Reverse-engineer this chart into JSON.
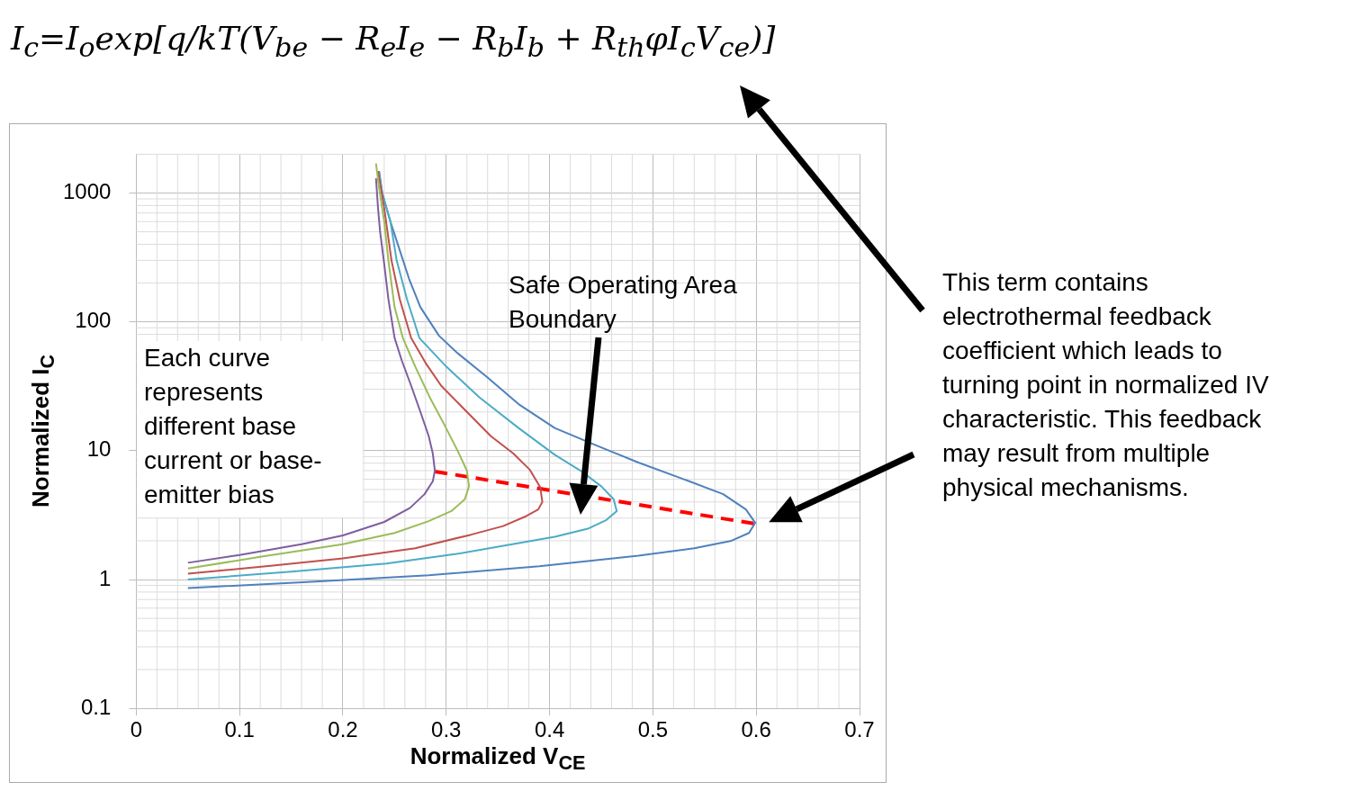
{
  "chart_data": {
    "type": "line",
    "title": "I$_{c}$=I$_{o}$exp[q/kT(V$_{be}$ − R$_{e}$I$_{e}$ − R$_{b}$I$_{b}$ + R$_{th}$φI$_{c}$V$_{ce}$)]",
    "xlabel": "Normalized V$_{CE}$",
    "ylabel": "Normalized I$_{C}$",
    "log": "y",
    "grid": true,
    "legend": false,
    "marker": "none",
    "xlim": [
      0,
      0.7
    ],
    "xticks": [
      0,
      0.1,
      0.2,
      0.3,
      0.4,
      0.5,
      0.6,
      0.7
    ],
    "ylim": [
      0.1,
      2000
    ],
    "yticks": [
      0.1,
      1,
      10,
      100,
      1000
    ],
    "series": [
      {
        "color": "#7e5ea0",
        "line_style": "solid",
        "x": [
          0.05,
          0.1,
          0.16,
          0.2,
          0.24,
          0.265,
          0.279,
          0.287,
          0.289,
          0.287,
          0.283,
          0.275,
          0.266,
          0.257,
          0.25,
          0.244,
          0.24,
          0.236,
          0.234,
          0.232
        ],
        "values": [
          1.35,
          1.55,
          1.88,
          2.2,
          2.8,
          3.6,
          4.6,
          5.8,
          7,
          9.5,
          13,
          20,
          32,
          50,
          75,
          150,
          280,
          500,
          760,
          1300
        ]
      },
      {
        "color": "#9bbb59",
        "line_style": "solid",
        "x": [
          0.05,
          0.12,
          0.2,
          0.25,
          0.283,
          0.305,
          0.318,
          0.322,
          0.32,
          0.311,
          0.298,
          0.284,
          0.27,
          0.258,
          0.25,
          0.244,
          0.24,
          0.235,
          0.232
        ],
        "values": [
          1.22,
          1.5,
          1.88,
          2.3,
          2.84,
          3.4,
          4.2,
          5.3,
          7,
          10,
          16,
          26,
          45,
          75,
          130,
          300,
          600,
          1100,
          1700
        ]
      },
      {
        "color": "#c0504d",
        "line_style": "solid",
        "x": [
          0.05,
          0.13,
          0.2,
          0.27,
          0.324,
          0.355,
          0.376,
          0.389,
          0.393,
          0.391,
          0.381,
          0.365,
          0.343,
          0.32,
          0.295,
          0.28,
          0.266,
          0.255,
          0.247,
          0.24,
          0.234
        ],
        "values": [
          1.11,
          1.28,
          1.46,
          1.75,
          2.23,
          2.6,
          3.07,
          3.5,
          4,
          5.2,
          7.1,
          9.5,
          13,
          20,
          32,
          48,
          75,
          150,
          300,
          760,
          1480
        ]
      },
      {
        "color": "#4bacc6",
        "line_style": "solid",
        "x": [
          0.05,
          0.15,
          0.242,
          0.31,
          0.364,
          0.405,
          0.437,
          0.455,
          0.465,
          0.462,
          0.45,
          0.43,
          0.405,
          0.37,
          0.332,
          0.3,
          0.274,
          0.262,
          0.252,
          0.246,
          0.238,
          0.235
        ],
        "values": [
          1,
          1.15,
          1.33,
          1.58,
          1.88,
          2.15,
          2.48,
          2.9,
          3.4,
          4.2,
          5.3,
          7,
          9.3,
          15,
          26,
          45,
          75,
          150,
          300,
          600,
          1000,
          1430
        ]
      },
      {
        "color": "#4f81bd",
        "line_style": "solid",
        "x": [
          0.05,
          0.17,
          0.283,
          0.39,
          0.486,
          0.54,
          0.576,
          0.593,
          0.599,
          0.59,
          0.568,
          0.53,
          0.486,
          0.445,
          0.405,
          0.37,
          0.34,
          0.31,
          0.293,
          0.275,
          0.264,
          0.254,
          0.246,
          0.238,
          0.235
        ],
        "values": [
          0.86,
          0.96,
          1.08,
          1.27,
          1.53,
          1.75,
          2,
          2.3,
          2.76,
          3.5,
          4.6,
          6,
          8.1,
          11,
          15,
          23,
          37,
          58,
          78,
          130,
          216,
          380,
          600,
          1000,
          1480
        ]
      },
      {
        "color": "#ff0000",
        "line_style": "dashed",
        "x": [
          0.289,
          0.6
        ],
        "values": [
          6.9,
          2.7
        ]
      }
    ],
    "annotations": [
      "Each curve represents different base current or base-emitter bias",
      "Safe Operating Area Boundary",
      "This term contains electrothermal feedback coefficient which leads to turning point in normalized IV characteristic.  This feedback may result from multiple physical mechanisms."
    ]
  }
}
